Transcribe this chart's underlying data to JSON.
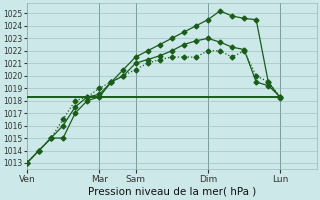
{
  "background_color": "#cce8e8",
  "grid_color": "#99bbbb",
  "line_color": "#1a5c1a",
  "xlabel": "Pression niveau de la mer( hPa )",
  "ylim": [
    1012.5,
    1025.8
  ],
  "yticks": [
    1013,
    1014,
    1015,
    1016,
    1017,
    1018,
    1019,
    1020,
    1021,
    1022,
    1023,
    1024,
    1025
  ],
  "xlim": [
    0,
    24
  ],
  "xtick_labels": [
    "Ven",
    "Mar",
    "Sam",
    "Dim",
    "Lun"
  ],
  "xtick_positions": [
    0,
    6,
    9,
    15,
    21
  ],
  "vline_positions": [
    0,
    6,
    9,
    15,
    21
  ],
  "line1_x": [
    0,
    1,
    2,
    3,
    4,
    5,
    6,
    7,
    8,
    9,
    10,
    11,
    12,
    13,
    14,
    15,
    16,
    17,
    18,
    19,
    20,
    21
  ],
  "line1_y": [
    1013,
    1014,
    1015,
    1015,
    1017,
    1018,
    1018.3,
    1019.5,
    1020.5,
    1021.5,
    1022,
    1022.5,
    1023,
    1023.5,
    1024,
    1024.5,
    1025.2,
    1024.8,
    1024.6,
    1024.5,
    1019.5,
    1018.2
  ],
  "line2_x": [
    0,
    1,
    2,
    3,
    4,
    5,
    6,
    7,
    8,
    9,
    10,
    11,
    12,
    13,
    14,
    15,
    16,
    17,
    18,
    19,
    20,
    21
  ],
  "line2_y": [
    1013,
    1014,
    1015,
    1016,
    1017.5,
    1018.3,
    1018.5,
    1019.5,
    1020,
    1021,
    1021.3,
    1021.6,
    1022,
    1022.5,
    1022.8,
    1023.0,
    1022.7,
    1022.3,
    1022.1,
    1019.5,
    1019.2,
    1018.3
  ],
  "line3_x": [
    0,
    1,
    2,
    3,
    4,
    5,
    6,
    7,
    8,
    9,
    10,
    11,
    12,
    13,
    14,
    15,
    16,
    17,
    18,
    19,
    20,
    21
  ],
  "line3_y": [
    1013,
    1014,
    1015,
    1016.5,
    1018,
    1018.3,
    1019,
    1019.5,
    1020,
    1020.5,
    1021,
    1021.3,
    1021.5,
    1021.5,
    1021.5,
    1022,
    1022,
    1021.5,
    1022,
    1020,
    1019.5,
    1018.3
  ],
  "line4_x": [
    0,
    21
  ],
  "line4_y": [
    1018.3,
    1018.3
  ],
  "marker_size": 2.5,
  "lw": 0.9
}
